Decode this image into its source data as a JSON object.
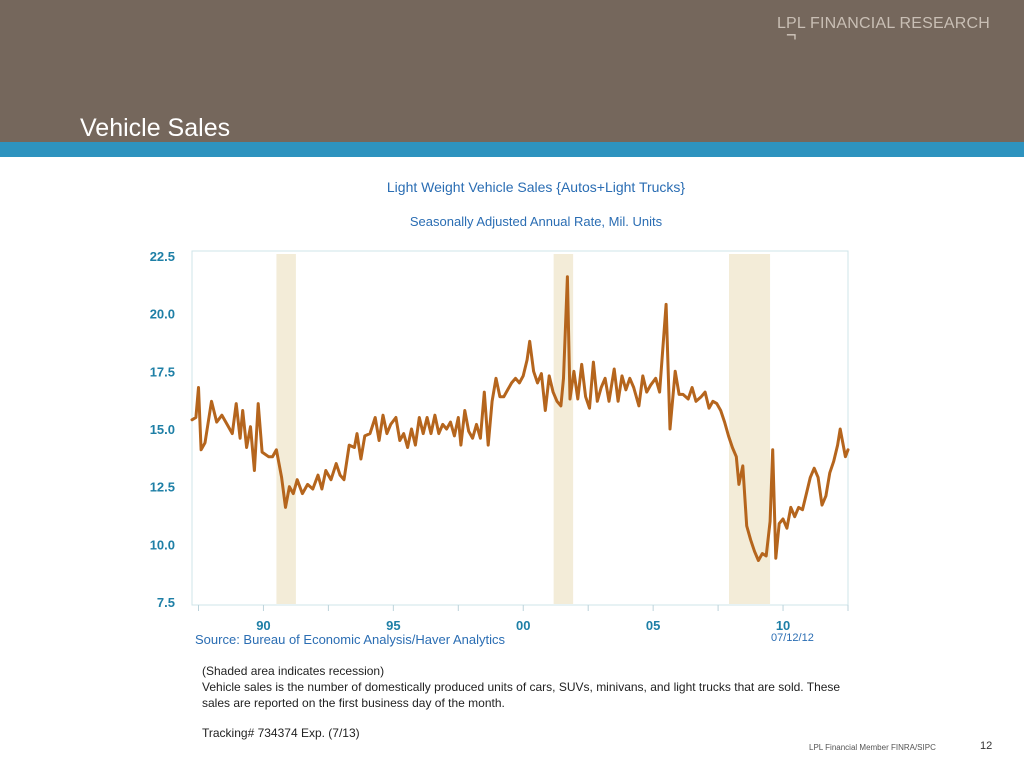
{
  "header": {
    "title": "Vehicle Sales",
    "brand": "LPL FINANCIAL RESEARCH"
  },
  "colors": {
    "header_bg": "#75675c",
    "stripe": "#2e93bf",
    "series_line": "#b5651d",
    "recession_shade": "#f3ecd8",
    "label_blue": "#2a6db3",
    "axis_label_teal": "#1e7fa6"
  },
  "chart_data": {
    "type": "line",
    "title": "Light Weight Vehicle Sales {Autos+Light Trucks}",
    "subtitle": "Seasonally Adjusted Annual Rate, Mil. Units",
    "ylim": [
      7.5,
      22.5
    ],
    "y_ticks": [
      "22.5",
      "20.0",
      "17.5",
      "15.0",
      "12.5",
      "10.0",
      "7.5"
    ],
    "y_tick_values": [
      22.5,
      20.0,
      17.5,
      15.0,
      12.5,
      10.0,
      7.5
    ],
    "xlim": [
      1987.25,
      2012.5
    ],
    "x_ticks": [
      "90",
      "95",
      "00",
      "05",
      "10"
    ],
    "x_tick_values": [
      1990,
      1995,
      2000,
      2005,
      2010
    ],
    "recessions": [
      [
        1990.5,
        1991.25
      ],
      [
        2001.17,
        2001.92
      ],
      [
        2007.92,
        2009.5
      ]
    ],
    "series": [
      {
        "values": [
          [
            1987.25,
            15.4
          ],
          [
            1987.4,
            15.5
          ],
          [
            1987.5,
            16.8
          ],
          [
            1987.6,
            14.1
          ],
          [
            1987.75,
            14.4
          ],
          [
            1988.0,
            16.2
          ],
          [
            1988.2,
            15.3
          ],
          [
            1988.4,
            15.6
          ],
          [
            1988.6,
            15.2
          ],
          [
            1988.8,
            14.8
          ],
          [
            1988.95,
            16.1
          ],
          [
            1989.1,
            14.6
          ],
          [
            1989.2,
            15.8
          ],
          [
            1989.35,
            14.2
          ],
          [
            1989.5,
            15.1
          ],
          [
            1989.65,
            13.2
          ],
          [
            1989.8,
            16.1
          ],
          [
            1989.95,
            14.0
          ],
          [
            1990.2,
            13.8
          ],
          [
            1990.35,
            13.8
          ],
          [
            1990.5,
            14.1
          ],
          [
            1990.7,
            12.9
          ],
          [
            1990.85,
            11.6
          ],
          [
            1991.0,
            12.5
          ],
          [
            1991.15,
            12.2
          ],
          [
            1991.3,
            12.8
          ],
          [
            1991.5,
            12.2
          ],
          [
            1991.7,
            12.6
          ],
          [
            1991.9,
            12.4
          ],
          [
            1992.1,
            13.0
          ],
          [
            1992.25,
            12.4
          ],
          [
            1992.4,
            13.2
          ],
          [
            1992.6,
            12.8
          ],
          [
            1992.8,
            13.5
          ],
          [
            1992.95,
            13.0
          ],
          [
            1993.1,
            12.8
          ],
          [
            1993.3,
            14.3
          ],
          [
            1993.5,
            14.2
          ],
          [
            1993.6,
            14.8
          ],
          [
            1993.75,
            13.7
          ],
          [
            1993.9,
            14.7
          ],
          [
            1994.1,
            14.8
          ],
          [
            1994.3,
            15.5
          ],
          [
            1994.45,
            14.5
          ],
          [
            1994.6,
            15.6
          ],
          [
            1994.75,
            14.8
          ],
          [
            1994.9,
            15.2
          ],
          [
            1995.1,
            15.5
          ],
          [
            1995.25,
            14.5
          ],
          [
            1995.4,
            14.8
          ],
          [
            1995.55,
            14.2
          ],
          [
            1995.7,
            15.0
          ],
          [
            1995.85,
            14.3
          ],
          [
            1996.0,
            15.5
          ],
          [
            1996.15,
            14.8
          ],
          [
            1996.3,
            15.5
          ],
          [
            1996.45,
            14.8
          ],
          [
            1996.6,
            15.6
          ],
          [
            1996.75,
            14.8
          ],
          [
            1996.9,
            15.2
          ],
          [
            1997.05,
            15.0
          ],
          [
            1997.2,
            15.3
          ],
          [
            1997.35,
            14.7
          ],
          [
            1997.5,
            15.5
          ],
          [
            1997.6,
            14.3
          ],
          [
            1997.75,
            15.8
          ],
          [
            1997.9,
            14.9
          ],
          [
            1998.05,
            14.6
          ],
          [
            1998.2,
            15.2
          ],
          [
            1998.35,
            14.6
          ],
          [
            1998.5,
            16.6
          ],
          [
            1998.65,
            14.3
          ],
          [
            1998.8,
            16.2
          ],
          [
            1998.95,
            17.2
          ],
          [
            1999.1,
            16.4
          ],
          [
            1999.25,
            16.4
          ],
          [
            1999.4,
            16.7
          ],
          [
            1999.55,
            17.0
          ],
          [
            1999.7,
            17.2
          ],
          [
            1999.85,
            17.0
          ],
          [
            2000.0,
            17.3
          ],
          [
            2000.15,
            18.0
          ],
          [
            2000.25,
            18.8
          ],
          [
            2000.4,
            17.5
          ],
          [
            2000.55,
            17.0
          ],
          [
            2000.7,
            17.4
          ],
          [
            2000.85,
            15.8
          ],
          [
            2001.0,
            17.3
          ],
          [
            2001.15,
            16.6
          ],
          [
            2001.3,
            16.2
          ],
          [
            2001.45,
            16.0
          ],
          [
            2001.55,
            17.2
          ],
          [
            2001.7,
            21.6
          ],
          [
            2001.8,
            16.3
          ],
          [
            2001.95,
            17.5
          ],
          [
            2002.1,
            16.3
          ],
          [
            2002.25,
            17.8
          ],
          [
            2002.4,
            16.4
          ],
          [
            2002.55,
            15.9
          ],
          [
            2002.7,
            17.9
          ],
          [
            2002.85,
            16.2
          ],
          [
            2003.0,
            16.8
          ],
          [
            2003.15,
            17.2
          ],
          [
            2003.3,
            16.2
          ],
          [
            2003.5,
            17.6
          ],
          [
            2003.65,
            16.2
          ],
          [
            2003.8,
            17.3
          ],
          [
            2003.95,
            16.7
          ],
          [
            2004.1,
            17.2
          ],
          [
            2004.25,
            16.8
          ],
          [
            2004.45,
            16.0
          ],
          [
            2004.6,
            17.3
          ],
          [
            2004.75,
            16.6
          ],
          [
            2004.9,
            16.9
          ],
          [
            2005.1,
            17.2
          ],
          [
            2005.25,
            16.6
          ],
          [
            2005.5,
            20.4
          ],
          [
            2005.65,
            15.0
          ],
          [
            2005.85,
            17.5
          ],
          [
            2006.0,
            16.5
          ],
          [
            2006.15,
            16.5
          ],
          [
            2006.35,
            16.3
          ],
          [
            2006.5,
            16.8
          ],
          [
            2006.65,
            16.2
          ],
          [
            2006.85,
            16.4
          ],
          [
            2007.0,
            16.6
          ],
          [
            2007.15,
            15.9
          ],
          [
            2007.3,
            16.2
          ],
          [
            2007.45,
            16.1
          ],
          [
            2007.6,
            15.8
          ],
          [
            2007.75,
            15.3
          ],
          [
            2007.9,
            14.7
          ],
          [
            2008.05,
            14.2
          ],
          [
            2008.2,
            13.8
          ],
          [
            2008.3,
            12.6
          ],
          [
            2008.45,
            13.4
          ],
          [
            2008.6,
            10.8
          ],
          [
            2008.75,
            10.2
          ],
          [
            2008.9,
            9.7
          ],
          [
            2009.05,
            9.3
          ],
          [
            2009.2,
            9.6
          ],
          [
            2009.35,
            9.5
          ],
          [
            2009.5,
            11.0
          ],
          [
            2009.6,
            14.1
          ],
          [
            2009.72,
            9.4
          ],
          [
            2009.85,
            10.9
          ],
          [
            2010.0,
            11.1
          ],
          [
            2010.15,
            10.7
          ],
          [
            2010.3,
            11.6
          ],
          [
            2010.45,
            11.2
          ],
          [
            2010.6,
            11.6
          ],
          [
            2010.75,
            11.5
          ],
          [
            2010.9,
            12.2
          ],
          [
            2011.05,
            12.9
          ],
          [
            2011.2,
            13.3
          ],
          [
            2011.35,
            12.9
          ],
          [
            2011.5,
            11.7
          ],
          [
            2011.65,
            12.1
          ],
          [
            2011.8,
            13.1
          ],
          [
            2011.95,
            13.6
          ],
          [
            2012.1,
            14.3
          ],
          [
            2012.2,
            15.0
          ],
          [
            2012.3,
            14.4
          ],
          [
            2012.4,
            13.8
          ],
          [
            2012.5,
            14.1
          ]
        ]
      }
    ]
  },
  "footer": {
    "source": "Source:  Bureau of Economic Analysis/Haver Analytics",
    "date": "07/12/12",
    "note_1": "(Shaded area indicates recession)",
    "note_2": "Vehicle sales is the number of domestically produced units of cars, SUVs, minivans, and light trucks that are sold. These sales are reported on the first business day of the month.",
    "tracking": "Tracking# 734374 Exp. (7/13)",
    "member": "LPL Financial Member FINRA/SIPC",
    "page_number": "12"
  }
}
